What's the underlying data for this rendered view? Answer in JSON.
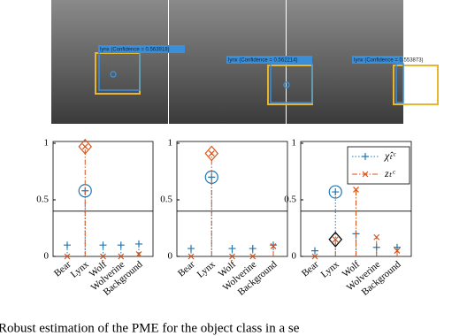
{
  "images": [
    {
      "label": "lynx (Confidence = 0.563918)"
    },
    {
      "label": "lynx (Confidence = 0.562214)"
    },
    {
      "label": "lynx (Confidence = 0.553873)"
    }
  ],
  "chart_data": [
    {
      "type": "stem",
      "categories": [
        "Bear",
        "Lynx",
        "Wolf",
        "Wolverine",
        "Background"
      ],
      "ylim": [
        0,
        1
      ],
      "yticks": [
        0,
        0.5,
        1
      ],
      "threshold": 0.4,
      "selected": 1,
      "legend": false,
      "series": [
        {
          "color": "#1f77b4",
          "marker": "plus",
          "values": [
            0.1,
            0.58,
            0.1,
            0.1,
            0.11
          ]
        },
        {
          "color": "#d95319",
          "marker": "cross",
          "values": [
            0.0,
            0.97,
            0.0,
            0.0,
            0.02
          ]
        }
      ]
    },
    {
      "type": "stem",
      "categories": [
        "Bear",
        "Lynx",
        "Wolf",
        "Wolverine",
        "Background"
      ],
      "ylim": [
        0,
        1
      ],
      "yticks": [
        0,
        0.5,
        1
      ],
      "threshold": 0.4,
      "selected": 1,
      "legend": false,
      "series": [
        {
          "color": "#1f77b4",
          "marker": "plus",
          "values": [
            0.07,
            0.7,
            0.07,
            0.07,
            0.1
          ]
        },
        {
          "color": "#d95319",
          "marker": "cross",
          "values": [
            0.0,
            0.91,
            0.0,
            0.0,
            0.09
          ]
        }
      ]
    },
    {
      "type": "stem",
      "categories": [
        "Bear",
        "Lynx",
        "Wolf",
        "Wolverine",
        "Background"
      ],
      "ylim": [
        0,
        1
      ],
      "yticks": [
        0,
        0.5,
        1
      ],
      "threshold": 0.4,
      "selected": 1,
      "legend": true,
      "series": [
        {
          "name": "χ̂ₜᶜ",
          "color": "#1f77b4",
          "marker": "plus",
          "values": [
            0.05,
            0.57,
            0.2,
            0.08,
            0.08
          ]
        },
        {
          "name": "zₜᶜ",
          "color": "#d95319",
          "marker": "cross",
          "values": [
            0.0,
            0.15,
            0.59,
            0.17,
            0.05
          ]
        }
      ]
    }
  ],
  "caption": "Robust estimation of the PME for the object class in a se"
}
